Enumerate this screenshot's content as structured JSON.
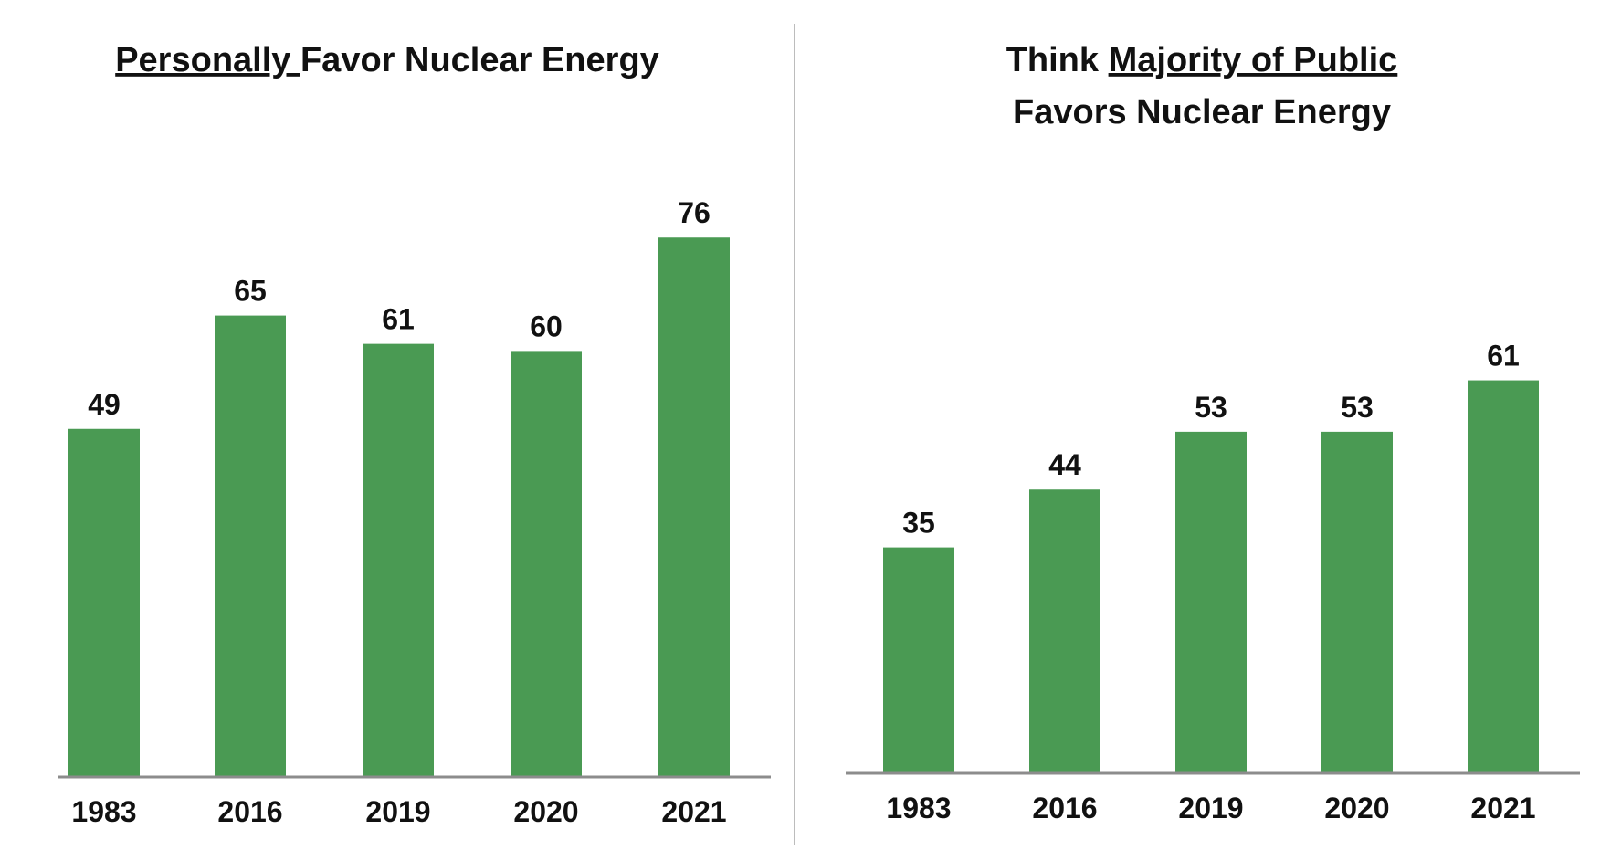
{
  "colors": {
    "bar": "#4a9a53",
    "axis": "#8c8c8c",
    "divider": "#bcbcbc"
  },
  "chart_data": [
    {
      "type": "bar",
      "title": "Personally Favor Nuclear Energy",
      "title_parts": [
        {
          "text": "Personally ",
          "underline": true
        },
        {
          "text": "Favor Nuclear Energy",
          "underline": false
        }
      ],
      "title_lines": [
        [
          {
            "text": "Personally ",
            "underline": true
          },
          {
            "text": "Favor Nuclear Energy",
            "underline": false
          }
        ]
      ],
      "categories": [
        "1983",
        "2016",
        "2019",
        "2020",
        "2021"
      ],
      "values": [
        49,
        65,
        61,
        60,
        76
      ],
      "data_labels": [
        "49",
        "65",
        "61",
        "60",
        "76"
      ],
      "xlabel": "",
      "ylabel": "",
      "ylim": [
        0,
        85
      ],
      "grid": false,
      "legend": "none"
    },
    {
      "type": "bar",
      "title": "Think Majority of Public Favors Nuclear Energy",
      "title_lines": [
        [
          {
            "text": "Think ",
            "underline": false
          },
          {
            "text": "Majority of Public",
            "underline": true
          }
        ],
        [
          {
            "text": "Favors Nuclear Energy",
            "underline": false
          }
        ]
      ],
      "categories": [
        "1983",
        "2016",
        "2019",
        "2020",
        "2021"
      ],
      "values": [
        35,
        44,
        53,
        53,
        61
      ],
      "data_labels": [
        "35",
        "44",
        "53",
        "53",
        "61"
      ],
      "xlabel": "",
      "ylabel": "",
      "ylim": [
        0,
        85
      ],
      "grid": false,
      "legend": "none"
    }
  ]
}
